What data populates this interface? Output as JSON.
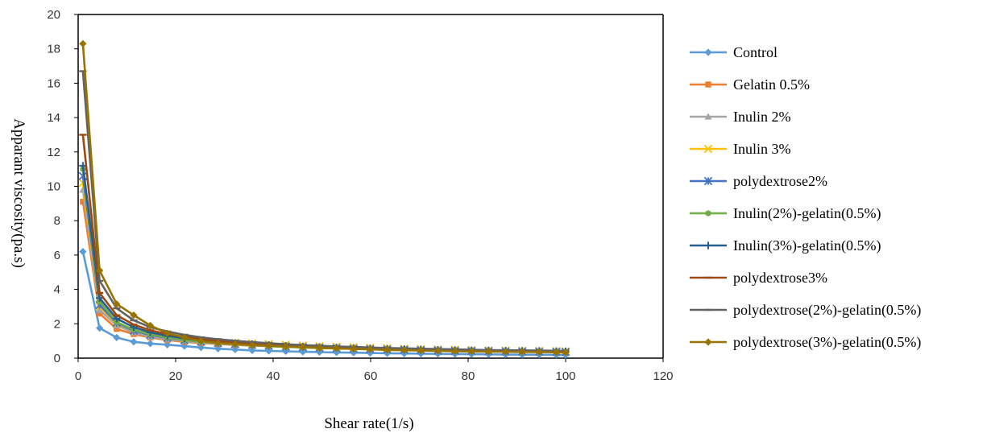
{
  "chart_data": {
    "type": "line",
    "title": "",
    "xlabel": "Shear rate(1/s)",
    "ylabel": "Apparant viscosity(pa.s)",
    "xlim": [
      0,
      120
    ],
    "ylim": [
      0,
      20
    ],
    "xticks": [
      "0",
      "20",
      "40",
      "60",
      "80",
      "100",
      "120"
    ],
    "yticks": [
      "0",
      "2",
      "4",
      "6",
      "8",
      "10",
      "12",
      "14",
      "16",
      "18",
      "20"
    ],
    "grid": false,
    "legend_position": "right",
    "x": [
      0.97,
      4.4,
      7.9,
      11.4,
      14.8,
      18.3,
      21.8,
      25.2,
      28.7,
      32.2,
      35.7,
      39.1,
      42.6,
      46.1,
      49.5,
      53.0,
      56.5,
      59.9,
      63.4,
      66.9,
      70.3,
      73.8,
      77.3,
      80.7,
      84.2,
      87.7,
      91.1,
      94.6,
      98.1,
      100
    ],
    "series": [
      {
        "name": "Control",
        "color": "#5b9bd5",
        "marker": "diamond",
        "values": [
          6.2,
          1.75,
          1.2,
          0.95,
          0.85,
          0.78,
          0.7,
          0.62,
          0.55,
          0.5,
          0.45,
          0.42,
          0.4,
          0.37,
          0.35,
          0.33,
          0.32,
          0.3,
          0.28,
          0.27,
          0.26,
          0.25,
          0.24,
          0.23,
          0.22,
          0.21,
          0.2,
          0.2,
          0.19,
          0.18
        ]
      },
      {
        "name": "Gelatin 0.5%",
        "color": "#ed7d31",
        "marker": "square",
        "values": [
          9.1,
          2.6,
          1.7,
          1.4,
          1.2,
          1.05,
          0.95,
          0.88,
          0.82,
          0.77,
          0.73,
          0.7,
          0.66,
          0.63,
          0.6,
          0.58,
          0.56,
          0.54,
          0.52,
          0.5,
          0.48,
          0.46,
          0.45,
          0.44,
          0.43,
          0.41,
          0.4,
          0.39,
          0.38,
          0.37
        ]
      },
      {
        "name": "Inulin 2%",
        "color": "#a5a5a5",
        "marker": "triangle",
        "values": [
          9.8,
          2.8,
          1.9,
          1.5,
          1.25,
          1.1,
          1.0,
          0.92,
          0.85,
          0.79,
          0.74,
          0.7,
          0.66,
          0.63,
          0.6,
          0.57,
          0.55,
          0.53,
          0.51,
          0.49,
          0.47,
          0.45,
          0.44,
          0.43,
          0.42,
          0.41,
          0.4,
          0.39,
          0.38,
          0.37
        ]
      },
      {
        "name": "Inulin 3%",
        "color": "#ffc000",
        "marker": "x",
        "values": [
          10.2,
          3.0,
          2.0,
          1.6,
          1.35,
          1.2,
          1.1,
          1.0,
          0.95,
          0.9,
          0.86,
          0.82,
          0.78,
          0.74,
          0.7,
          0.67,
          0.64,
          0.61,
          0.58,
          0.55,
          0.53,
          0.51,
          0.49,
          0.47,
          0.45,
          0.44,
          0.43,
          0.42,
          0.41,
          0.4
        ]
      },
      {
        "name": "polydextrose2%",
        "color": "#4472c4",
        "marker": "asterisk",
        "values": [
          10.6,
          3.1,
          2.05,
          1.6,
          1.35,
          1.18,
          1.05,
          0.96,
          0.88,
          0.82,
          0.77,
          0.72,
          0.68,
          0.64,
          0.61,
          0.58,
          0.55,
          0.53,
          0.51,
          0.49,
          0.47,
          0.45,
          0.43,
          0.42,
          0.41,
          0.4,
          0.39,
          0.38,
          0.37,
          0.36
        ]
      },
      {
        "name": "Inulin(2%)-gelatin(0.5%)",
        "color": "#70ad47",
        "marker": "circle",
        "values": [
          11.0,
          3.3,
          2.1,
          1.65,
          1.38,
          1.2,
          1.06,
          0.96,
          0.88,
          0.81,
          0.75,
          0.7,
          0.66,
          0.62,
          0.59,
          0.56,
          0.54,
          0.52,
          0.5,
          0.48,
          0.46,
          0.45,
          0.44,
          0.43,
          0.42,
          0.41,
          0.4,
          0.39,
          0.38,
          0.37
        ]
      },
      {
        "name": "Inulin(3%)-gelatin(0.5%)",
        "color": "#255e91",
        "marker": "plus",
        "values": [
          11.2,
          3.5,
          2.3,
          1.8,
          1.5,
          1.3,
          1.15,
          1.04,
          0.95,
          0.88,
          0.82,
          0.77,
          0.72,
          0.68,
          0.65,
          0.62,
          0.59,
          0.57,
          0.55,
          0.53,
          0.51,
          0.49,
          0.47,
          0.46,
          0.45,
          0.44,
          0.43,
          0.42,
          0.41,
          0.4
        ]
      },
      {
        "name": "polydextrose3%",
        "color": "#9e480e",
        "marker": "dash",
        "values": [
          13.0,
          3.8,
          2.5,
          1.95,
          1.62,
          1.4,
          1.24,
          1.11,
          1.01,
          0.93,
          0.86,
          0.8,
          0.75,
          0.71,
          0.67,
          0.64,
          0.61,
          0.58,
          0.56,
          0.54,
          0.52,
          0.5,
          0.48,
          0.47,
          0.46,
          0.45,
          0.44,
          0.43,
          0.42,
          0.41
        ]
      },
      {
        "name": "polydextrose(2%)-gelatin(0.5%)",
        "color": "#636363",
        "marker": "dash",
        "values": [
          16.7,
          4.5,
          2.9,
          2.2,
          1.8,
          1.55,
          1.36,
          1.21,
          1.1,
          1.01,
          0.93,
          0.87,
          0.81,
          0.76,
          0.72,
          0.68,
          0.65,
          0.62,
          0.59,
          0.57,
          0.55,
          0.53,
          0.51,
          0.49,
          0.47,
          0.46,
          0.45,
          0.44,
          0.43,
          0.42
        ]
      },
      {
        "name": "polydextrose(3%)-gelatin(0.5%)",
        "color": "#997300",
        "marker": "diamond",
        "values": [
          18.3,
          5.1,
          3.15,
          2.5,
          1.9,
          1.45,
          1.2,
          1.0,
          0.88,
          0.82,
          0.76,
          0.72,
          0.68,
          0.64,
          0.6,
          0.57,
          0.54,
          0.51,
          0.48,
          0.46,
          0.44,
          0.42,
          0.4,
          0.39,
          0.38,
          0.37,
          0.36,
          0.35,
          0.34,
          0.33
        ]
      }
    ]
  }
}
